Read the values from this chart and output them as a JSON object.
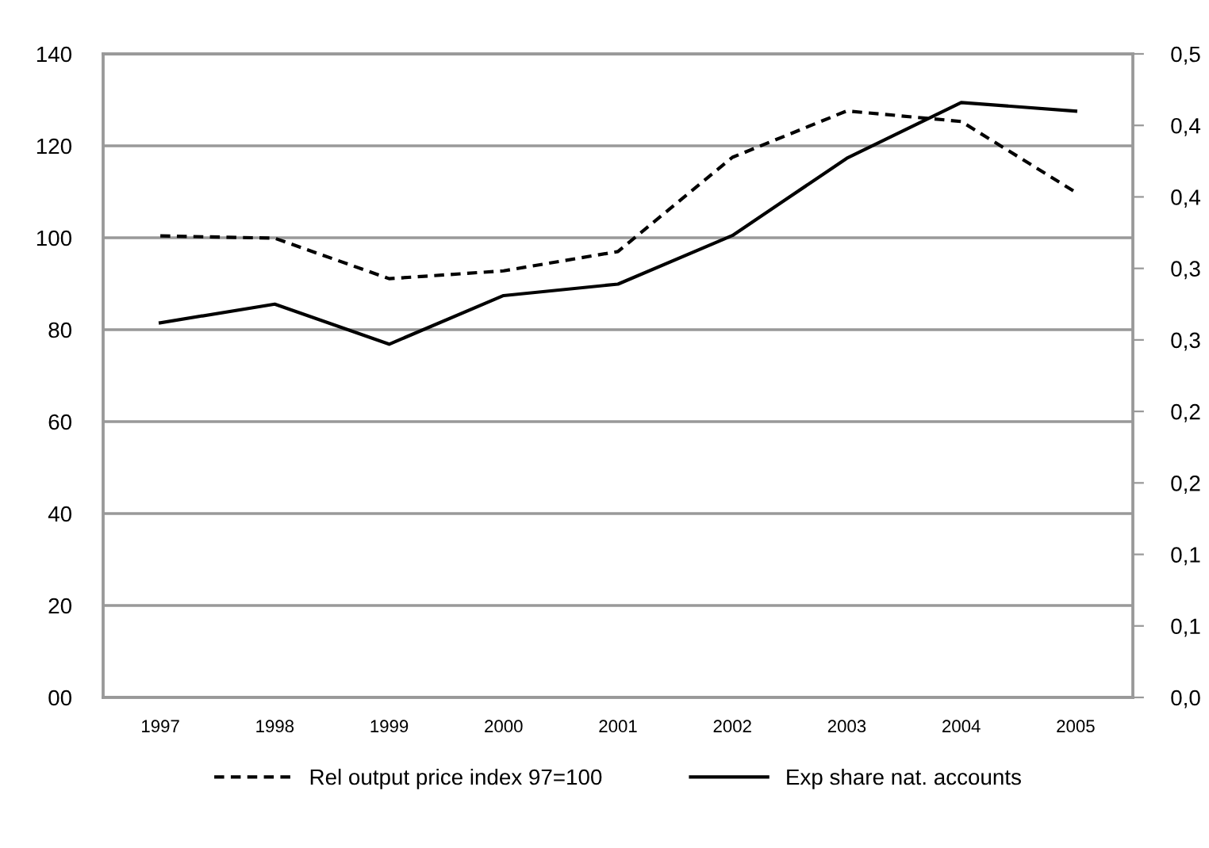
{
  "chart_data": {
    "type": "line",
    "categories": [
      "1997",
      "1998",
      "1999",
      "2000",
      "2001",
      "2002",
      "2003",
      "2004",
      "2005"
    ],
    "series": [
      {
        "name": "Rel output price index 97=100",
        "color": "#000000",
        "line_style": "dashed",
        "values": [
          100.4,
          99.9,
          91.1,
          92.8,
          97.0,
          117.5,
          127.6,
          125.3,
          109.9
        ]
      },
      {
        "name": "Exp share nat. accounts",
        "color": "#000000",
        "line_style": "solid",
        "axis": "y2",
        "values": [
          0.262,
          0.275,
          0.247,
          0.281,
          0.289,
          0.323,
          0.377,
          0.416,
          0.41
        ]
      }
    ],
    "ylim": [
      0,
      140
    ],
    "yticks": [
      {
        "value": 0,
        "label": "00"
      },
      20,
      40,
      60,
      80,
      100,
      120,
      140
    ],
    "y2lim": [
      0,
      0.45
    ],
    "y2ticks": [
      {
        "value": 0,
        "label": "0,0"
      },
      {
        "value": 0.05,
        "label": "0,1"
      },
      {
        "value": 0.1,
        "label": "0,1"
      },
      {
        "value": 0.15,
        "label": "0,2"
      },
      {
        "value": 0.2,
        "label": "0,2"
      },
      {
        "value": 0.25,
        "label": "0,3"
      },
      {
        "value": 0.3,
        "label": "0,3"
      },
      {
        "value": 0.35,
        "label": "0,4"
      },
      {
        "value": 0.4,
        "label": "0,4"
      },
      {
        "value": 0.45,
        "label": "0,5"
      }
    ],
    "grid": "y",
    "legend": "bottom",
    "marker": "none"
  }
}
